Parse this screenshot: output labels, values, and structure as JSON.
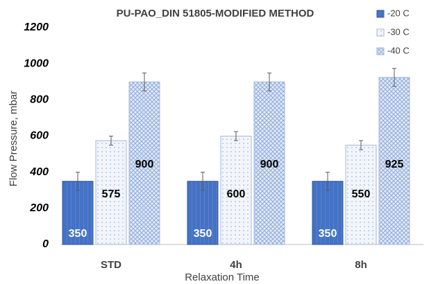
{
  "chart_data": {
    "type": "bar",
    "title": "PU-PAO_DIN 51805-MODIFIED METHOD",
    "x_label": "Relaxation Time",
    "y_label": "Flow Pressure, mbar",
    "categories": [
      "STD",
      "4h",
      "8h"
    ],
    "series": [
      {
        "name": "-20 C",
        "color": "#4472c4",
        "label_color": "#ffffff",
        "values": [
          350,
          350,
          350
        ],
        "errors": [
          50,
          50,
          50
        ]
      },
      {
        "name": "-30 C",
        "color": "#b4c7e7",
        "label_color": "#000000",
        "values": [
          575,
          600,
          550
        ],
        "errors": [
          25,
          25,
          25
        ]
      },
      {
        "name": "-40 C",
        "color": "#8faadc",
        "label_color": "#000000",
        "values": [
          900,
          900,
          925
        ],
        "errors": [
          50,
          50,
          50
        ]
      }
    ],
    "ylim": [
      0,
      1200
    ],
    "yticks": [
      0,
      200,
      400,
      600,
      800,
      1000,
      1200
    ],
    "grid": false,
    "legend": "top-right"
  }
}
